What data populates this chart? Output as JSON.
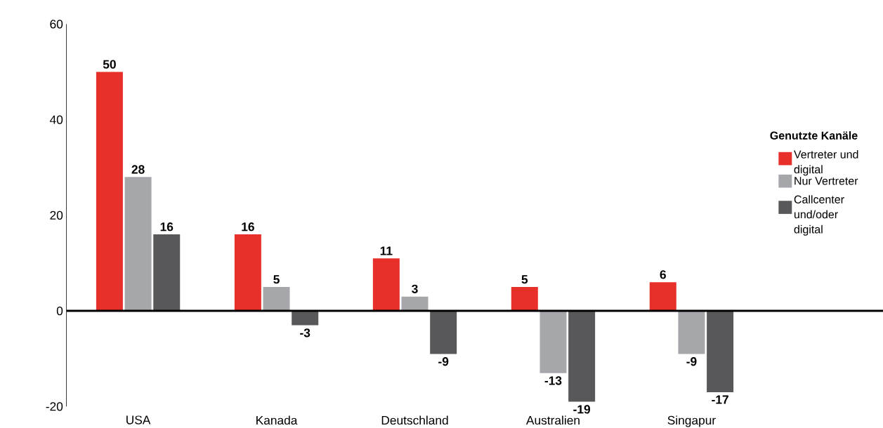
{
  "chart_data": {
    "type": "bar",
    "categories": [
      "USA",
      "Kanada",
      "Deutschland",
      "Australien",
      "Singapur"
    ],
    "series": [
      {
        "name": "Vertreter und digital",
        "color": "#e8302a",
        "values": [
          50,
          16,
          11,
          5,
          6
        ]
      },
      {
        "name": "Nur Vertreter",
        "color": "#a6a7aa",
        "values": [
          28,
          5,
          3,
          -13,
          -9
        ]
      },
      {
        "name": "Callcenter und/oder digital",
        "color": "#58585a",
        "values": [
          16,
          -3,
          -9,
          -19,
          -17
        ]
      }
    ],
    "legend_title": "Genutzte Kanäle",
    "legend": "right",
    "data_labels": true,
    "ylim": [
      -20,
      60
    ],
    "yticks": [
      -20,
      0,
      20,
      40,
      60
    ]
  }
}
